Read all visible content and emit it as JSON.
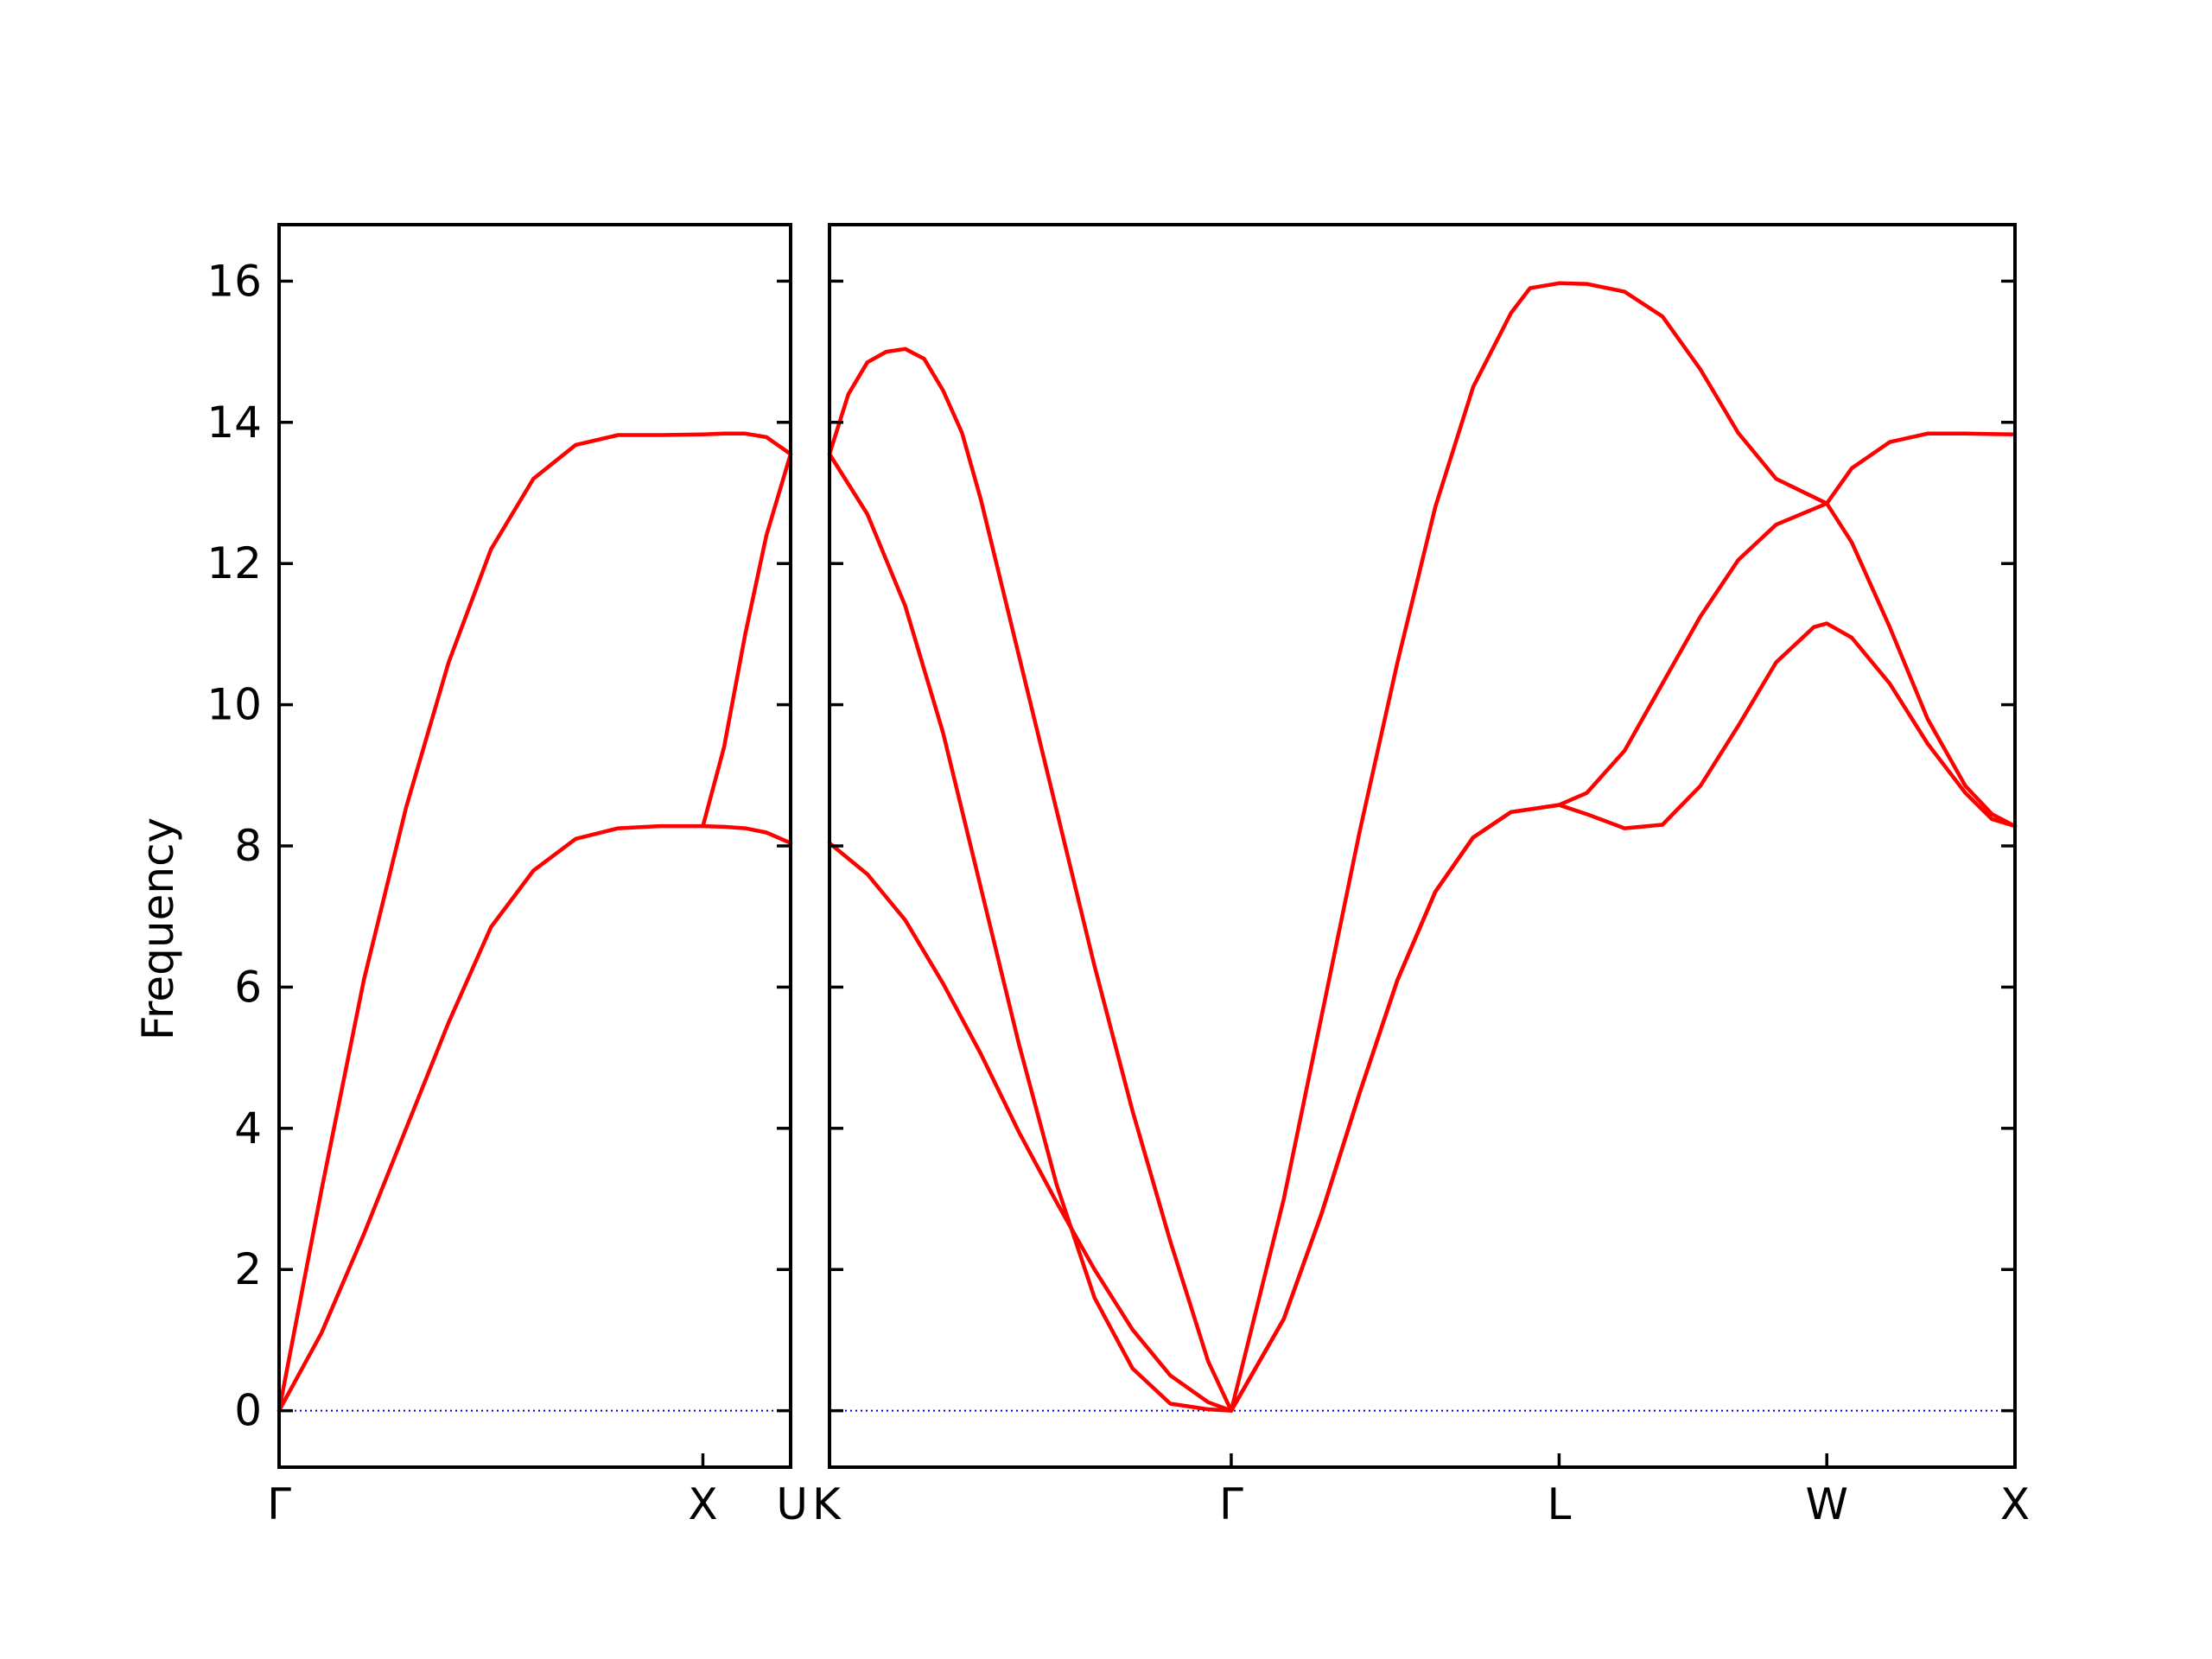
{
  "chart_data": {
    "type": "line",
    "ylabel": "Frequency",
    "ylim": [
      -0.8,
      16.8
    ],
    "yticks": [
      0,
      2,
      4,
      6,
      8,
      10,
      12,
      14,
      16
    ],
    "line_color": "#ff0000",
    "zero_line_color": "#0000cc",
    "grid": false,
    "panels": [
      {
        "xlim": [
          0,
          1.207
        ],
        "ticks": [
          {
            "x": 0,
            "label": "Γ"
          },
          {
            "x": 1.0,
            "label": "X"
          },
          {
            "x": 1.207,
            "label": "U"
          }
        ],
        "series": [
          {
            "points": [
              [
                0,
                0
              ],
              [
                0.1,
                3.12
              ],
              [
                0.2,
                6.1
              ],
              [
                0.3,
                8.55
              ],
              [
                0.4,
                10.6
              ],
              [
                0.5,
                12.2
              ],
              [
                0.6,
                13.2
              ],
              [
                0.7,
                13.68
              ],
              [
                0.8,
                13.82
              ],
              [
                0.9,
                13.82
              ],
              [
                1.0,
                13.83
              ],
              [
                1.05,
                13.84
              ],
              [
                1.1,
                13.84
              ],
              [
                1.15,
                13.79
              ],
              [
                1.207,
                13.55
              ]
            ]
          },
          {
            "points": [
              [
                0,
                0
              ],
              [
                0.1,
                1.1
              ],
              [
                0.2,
                2.5
              ],
              [
                0.3,
                4.0
              ],
              [
                0.4,
                5.5
              ],
              [
                0.5,
                6.85
              ],
              [
                0.6,
                7.65
              ],
              [
                0.7,
                8.1
              ],
              [
                0.8,
                8.25
              ],
              [
                0.9,
                8.28
              ],
              [
                1.0,
                8.28
              ],
              [
                1.05,
                8.27
              ],
              [
                1.1,
                8.25
              ],
              [
                1.15,
                8.19
              ],
              [
                1.207,
                8.04
              ]
            ]
          },
          {
            "points": [
              [
                1.0,
                8.28
              ],
              [
                1.05,
                9.4
              ],
              [
                1.1,
                11.0
              ],
              [
                1.15,
                12.4
              ],
              [
                1.207,
                13.55
              ]
            ]
          }
        ]
      },
      {
        "xlim": [
          0,
          3.131
        ],
        "ticks": [
          {
            "x": 0,
            "label": "K"
          },
          {
            "x": 1.061,
            "label": "Γ"
          },
          {
            "x": 1.927,
            "label": "L"
          },
          {
            "x": 2.634,
            "label": "W"
          },
          {
            "x": 3.131,
            "label": "X"
          }
        ],
        "series": [
          {
            "points": [
              [
                0,
                13.55
              ],
              [
                0.05,
                14.4
              ],
              [
                0.1,
                14.85
              ],
              [
                0.15,
                15.0
              ],
              [
                0.2,
                15.04
              ],
              [
                0.25,
                14.9
              ],
              [
                0.3,
                14.45
              ],
              [
                0.35,
                13.85
              ],
              [
                0.4,
                12.9
              ],
              [
                0.5,
                10.7
              ],
              [
                0.6,
                8.5
              ],
              [
                0.7,
                6.3
              ],
              [
                0.8,
                4.25
              ],
              [
                0.9,
                2.4
              ],
              [
                1.0,
                0.7
              ],
              [
                1.061,
                0
              ]
            ]
          },
          {
            "points": [
              [
                0,
                13.55
              ],
              [
                0.1,
                12.7
              ],
              [
                0.2,
                11.4
              ],
              [
                0.3,
                9.6
              ],
              [
                0.4,
                7.4
              ],
              [
                0.5,
                5.2
              ],
              [
                0.6,
                3.2
              ],
              [
                0.7,
                1.6
              ],
              [
                0.8,
                0.6
              ],
              [
                0.9,
                0.1
              ],
              [
                1.0,
                0.02
              ],
              [
                1.061,
                0
              ]
            ]
          },
          {
            "points": [
              [
                0,
                8.04
              ],
              [
                0.1,
                7.6
              ],
              [
                0.2,
                6.95
              ],
              [
                0.3,
                6.05
              ],
              [
                0.4,
                5.05
              ],
              [
                0.5,
                3.95
              ],
              [
                0.6,
                2.95
              ],
              [
                0.7,
                2.0
              ],
              [
                0.8,
                1.15
              ],
              [
                0.9,
                0.5
              ],
              [
                1.0,
                0.12
              ],
              [
                1.061,
                0
              ]
            ]
          },
          {
            "points": [
              [
                1.061,
                0
              ],
              [
                1.2,
                3.0
              ],
              [
                1.3,
                5.6
              ],
              [
                1.4,
                8.2
              ],
              [
                1.5,
                10.6
              ],
              [
                1.6,
                12.8
              ],
              [
                1.7,
                14.5
              ],
              [
                1.8,
                15.55
              ],
              [
                1.85,
                15.9
              ],
              [
                1.927,
                15.97
              ],
              [
                2.0,
                15.96
              ],
              [
                2.1,
                15.85
              ],
              [
                2.2,
                15.5
              ],
              [
                2.3,
                14.75
              ],
              [
                2.4,
                13.85
              ],
              [
                2.5,
                13.2
              ],
              [
                2.634,
                12.85
              ]
            ]
          },
          {
            "points": [
              [
                1.061,
                0
              ],
              [
                1.2,
                1.3
              ],
              [
                1.3,
                2.8
              ],
              [
                1.4,
                4.5
              ],
              [
                1.5,
                6.1
              ],
              [
                1.6,
                7.35
              ],
              [
                1.7,
                8.12
              ],
              [
                1.8,
                8.48
              ],
              [
                1.927,
                8.58
              ],
              [
                2.0,
                8.75
              ],
              [
                2.1,
                9.35
              ],
              [
                2.2,
                10.3
              ],
              [
                2.3,
                11.25
              ],
              [
                2.4,
                12.05
              ],
              [
                2.5,
                12.55
              ],
              [
                2.634,
                12.85
              ]
            ]
          },
          {
            "points": [
              [
                1.061,
                0
              ],
              [
                1.2,
                1.3
              ],
              [
                1.3,
                2.8
              ],
              [
                1.4,
                4.5
              ],
              [
                1.5,
                6.1
              ],
              [
                1.6,
                7.35
              ],
              [
                1.7,
                8.12
              ],
              [
                1.8,
                8.48
              ],
              [
                1.927,
                8.58
              ],
              [
                2.0,
                8.45
              ],
              [
                2.1,
                8.25
              ],
              [
                2.2,
                8.3
              ],
              [
                2.3,
                8.85
              ],
              [
                2.4,
                9.7
              ],
              [
                2.5,
                10.6
              ],
              [
                2.6,
                11.1
              ],
              [
                2.634,
                11.15
              ],
              [
                2.7,
                10.95
              ],
              [
                2.8,
                10.3
              ],
              [
                2.9,
                9.45
              ],
              [
                3.0,
                8.75
              ],
              [
                3.07,
                8.38
              ],
              [
                3.131,
                8.28
              ]
            ]
          },
          {
            "points": [
              [
                2.634,
                12.85
              ],
              [
                2.7,
                13.35
              ],
              [
                2.8,
                13.72
              ],
              [
                2.9,
                13.84
              ],
              [
                3.0,
                13.84
              ],
              [
                3.131,
                13.83
              ]
            ]
          },
          {
            "points": [
              [
                2.634,
                12.85
              ],
              [
                2.7,
                12.3
              ],
              [
                2.8,
                11.1
              ],
              [
                2.9,
                9.8
              ],
              [
                3.0,
                8.85
              ],
              [
                3.07,
                8.45
              ],
              [
                3.131,
                8.28
              ]
            ]
          }
        ]
      }
    ]
  }
}
